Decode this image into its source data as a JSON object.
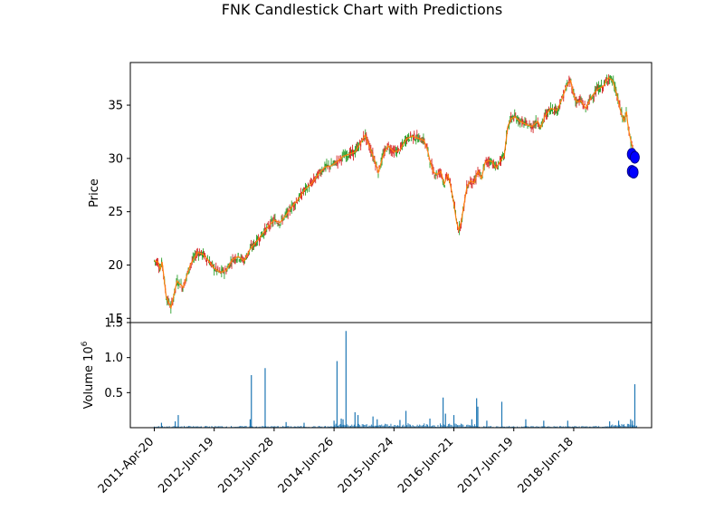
{
  "chart_data": {
    "type": "candlestick",
    "title": "FNK Candlestick Chart with Predictions",
    "price_panel": {
      "ylabel": "Price",
      "ylim": [
        14.6,
        39.0
      ],
      "yticks": [
        15,
        20,
        25,
        30,
        35
      ],
      "up_color": "#2ca02c",
      "down_color": "#d62728",
      "trend_color": "#ff7f0e",
      "prediction_color": "#0000ff",
      "trend_points": [
        [
          0,
          20.4
        ],
        [
          0.06,
          20.3
        ],
        [
          0.1,
          19.6
        ],
        [
          0.13,
          20.3
        ],
        [
          0.2,
          17.0
        ],
        [
          0.28,
          16.0
        ],
        [
          0.38,
          18.5
        ],
        [
          0.48,
          17.9
        ],
        [
          0.6,
          20.0
        ],
        [
          0.72,
          21.2
        ],
        [
          0.82,
          21.0
        ],
        [
          0.92,
          20.3
        ],
        [
          1.0,
          19.7
        ],
        [
          1.1,
          19.3
        ],
        [
          1.2,
          19.5
        ],
        [
          1.3,
          20.5
        ],
        [
          1.4,
          20.8
        ],
        [
          1.5,
          20.4
        ],
        [
          1.6,
          21.5
        ],
        [
          1.75,
          22.5
        ],
        [
          1.9,
          23.6
        ],
        [
          2.0,
          24.2
        ],
        [
          2.1,
          24.0
        ],
        [
          2.2,
          24.7
        ],
        [
          2.3,
          25.5
        ],
        [
          2.42,
          26.3
        ],
        [
          2.5,
          27.0
        ],
        [
          2.62,
          27.6
        ],
        [
          2.75,
          28.6
        ],
        [
          2.85,
          29.2
        ],
        [
          2.95,
          29.3
        ],
        [
          3.05,
          29.7
        ],
        [
          3.15,
          30.2
        ],
        [
          3.25,
          30.4
        ],
        [
          3.35,
          30.6
        ],
        [
          3.45,
          31.5
        ],
        [
          3.52,
          32.2
        ],
        [
          3.6,
          31.0
        ],
        [
          3.68,
          29.8
        ],
        [
          3.74,
          28.7
        ],
        [
          3.82,
          30.3
        ],
        [
          3.9,
          31.2
        ],
        [
          4.0,
          30.6
        ],
        [
          4.1,
          30.8
        ],
        [
          4.2,
          31.8
        ],
        [
          4.3,
          32.1
        ],
        [
          4.4,
          31.9
        ],
        [
          4.5,
          31.7
        ],
        [
          4.56,
          30.8
        ],
        [
          4.6,
          29.8
        ],
        [
          4.66,
          28.7
        ],
        [
          4.72,
          28.5
        ],
        [
          4.78,
          28.8
        ],
        [
          4.84,
          27.6
        ],
        [
          4.9,
          28.5
        ],
        [
          4.95,
          27.3
        ],
        [
          5.0,
          25.8
        ],
        [
          5.04,
          24.2
        ],
        [
          5.08,
          23.3
        ],
        [
          5.12,
          24.0
        ],
        [
          5.18,
          26.0
        ],
        [
          5.22,
          27.4
        ],
        [
          5.28,
          27.9
        ],
        [
          5.34,
          27.7
        ],
        [
          5.4,
          28.8
        ],
        [
          5.46,
          28.1
        ],
        [
          5.52,
          29.6
        ],
        [
          5.58,
          29.8
        ],
        [
          5.64,
          29.7
        ],
        [
          5.7,
          29.1
        ],
        [
          5.78,
          29.8
        ],
        [
          5.84,
          30.2
        ],
        [
          5.9,
          33.0
        ],
        [
          5.95,
          33.7
        ],
        [
          6.02,
          33.9
        ],
        [
          6.1,
          33.5
        ],
        [
          6.2,
          33.2
        ],
        [
          6.3,
          33.0
        ],
        [
          6.4,
          33.5
        ],
        [
          6.45,
          32.9
        ],
        [
          6.52,
          34.0
        ],
        [
          6.62,
          34.7
        ],
        [
          6.72,
          34.5
        ],
        [
          6.8,
          35.5
        ],
        [
          6.88,
          36.8
        ],
        [
          6.95,
          37.3
        ],
        [
          7.0,
          36.0
        ],
        [
          7.05,
          35.3
        ],
        [
          7.12,
          35.4
        ],
        [
          7.2,
          34.7
        ],
        [
          7.3,
          35.8
        ],
        [
          7.4,
          36.5
        ],
        [
          7.5,
          36.8
        ],
        [
          7.58,
          37.6
        ],
        [
          7.65,
          37.3
        ],
        [
          7.72,
          36.0
        ],
        [
          7.78,
          34.5
        ],
        [
          7.84,
          33.5
        ],
        [
          7.88,
          34.4
        ],
        [
          7.9,
          33.4
        ],
        [
          7.92,
          32.6
        ],
        [
          7.96,
          31.5
        ],
        [
          8.0,
          30.6
        ]
      ],
      "predictions": [
        {
          "t": 7.97,
          "price": 30.4
        },
        {
          "t": 8.02,
          "price": 30.1
        },
        {
          "t": 7.97,
          "price": 28.8
        },
        {
          "t": 8.0,
          "price": 28.7
        }
      ]
    },
    "volume_panel": {
      "ylabel": "Volume  10",
      "ylabel_exponent": "6",
      "ylim": [
        0,
        1.5
      ],
      "yticks": [
        0.5,
        1.0,
        1.5
      ],
      "bar_color": "#1f77b4",
      "spikes": [
        {
          "t": 0.12,
          "v": 0.07
        },
        {
          "t": 0.4,
          "v": 0.18
        },
        {
          "t": 0.35,
          "v": 0.09
        },
        {
          "t": 1.6,
          "v": 0.12
        },
        {
          "t": 1.62,
          "v": 0.75
        },
        {
          "t": 1.85,
          "v": 0.85
        },
        {
          "t": 2.2,
          "v": 0.08
        },
        {
          "t": 2.5,
          "v": 0.07
        },
        {
          "t": 3.0,
          "v": 0.1
        },
        {
          "t": 3.05,
          "v": 0.95
        },
        {
          "t": 3.12,
          "v": 0.13
        },
        {
          "t": 3.15,
          "v": 0.12
        },
        {
          "t": 3.2,
          "v": 1.38
        },
        {
          "t": 3.35,
          "v": 0.22
        },
        {
          "t": 3.4,
          "v": 0.18
        },
        {
          "t": 3.65,
          "v": 0.16
        },
        {
          "t": 3.72,
          "v": 0.12
        },
        {
          "t": 4.1,
          "v": 0.11
        },
        {
          "t": 4.2,
          "v": 0.24
        },
        {
          "t": 4.6,
          "v": 0.13
        },
        {
          "t": 4.82,
          "v": 0.43
        },
        {
          "t": 4.86,
          "v": 0.2
        },
        {
          "t": 5.0,
          "v": 0.18
        },
        {
          "t": 5.3,
          "v": 0.12
        },
        {
          "t": 5.38,
          "v": 0.42
        },
        {
          "t": 5.4,
          "v": 0.3
        },
        {
          "t": 5.55,
          "v": 0.1
        },
        {
          "t": 5.8,
          "v": 0.37
        },
        {
          "t": 6.2,
          "v": 0.12
        },
        {
          "t": 6.5,
          "v": 0.1
        },
        {
          "t": 6.9,
          "v": 0.1
        },
        {
          "t": 7.6,
          "v": 0.09
        },
        {
          "t": 7.75,
          "v": 0.1
        },
        {
          "t": 7.95,
          "v": 0.12
        },
        {
          "t": 7.98,
          "v": 0.1
        },
        {
          "t": 8.02,
          "v": 0.62
        }
      ]
    },
    "x_axis": {
      "categories": [
        "2011-Apr-20",
        "2012-Jun-19",
        "2013-Jun-28",
        "2014-Jun-26",
        "2015-Jun-24",
        "2016-Jun-21",
        "2017-Jun-19",
        "2018-Jun-18"
      ],
      "xlim": [
        -0.4,
        8.3
      ]
    }
  }
}
